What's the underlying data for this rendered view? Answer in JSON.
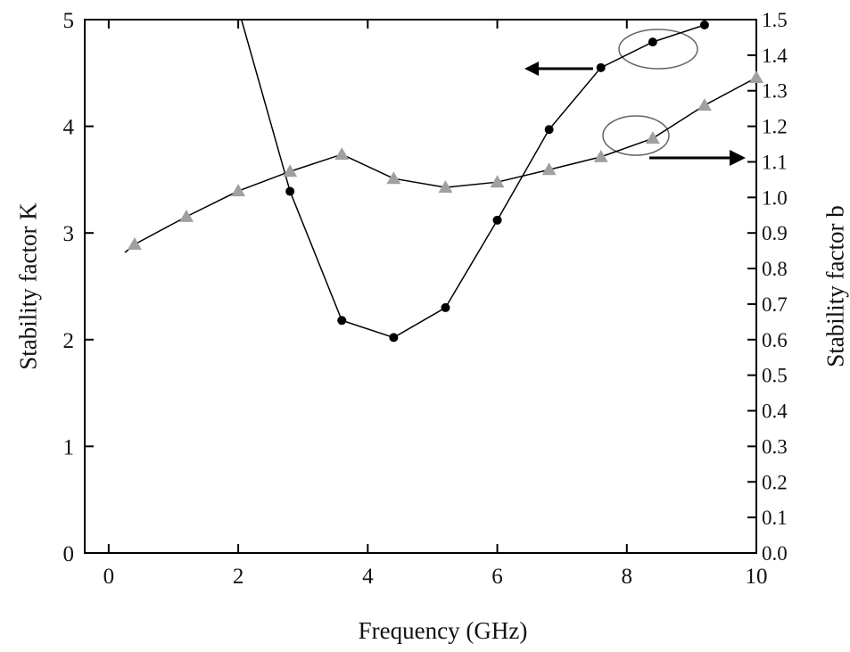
{
  "chart_data": {
    "type": "line",
    "xlabel": "Frequency (GHz)",
    "ylabel_left": "Stability factor K",
    "ylabel_right": "Stability factor b",
    "xlim": [
      -0.37,
      10
    ],
    "ylim_left": [
      0,
      5
    ],
    "ylim_right": [
      0,
      1.5
    ],
    "x_ticks": [
      "0",
      "2",
      "4",
      "6",
      "8",
      "10"
    ],
    "y_ticks_left": [
      "0",
      "1",
      "2",
      "3",
      "4",
      "5"
    ],
    "y_ticks_right": [
      "0.0",
      "0.1",
      "0.2",
      "0.3",
      "0.4",
      "0.5",
      "0.6",
      "0.7",
      "0.8",
      "0.9",
      "1.0",
      "1.1",
      "1.2",
      "1.3",
      "1.4",
      "1.5"
    ],
    "grid": false,
    "series": [
      {
        "axis": "left",
        "marker": "circle",
        "color": "#000000",
        "line_start": [
          2.05,
          5.0
        ],
        "x": [
          2.8,
          3.6,
          4.4,
          5.2,
          6.0,
          6.8,
          7.6,
          8.4,
          9.2
        ],
        "values": [
          3.39,
          2.18,
          2.02,
          2.3,
          3.12,
          3.97,
          4.55,
          4.79,
          4.95
        ]
      },
      {
        "axis": "right",
        "marker": "triangle",
        "color": "#a0a0a0",
        "line_start": [
          0.25,
          0.845
        ],
        "x": [
          0.4,
          1.2,
          2.0,
          2.8,
          3.6,
          4.4,
          5.2,
          6.0,
          6.8,
          7.6,
          8.4,
          9.2,
          10.0
        ],
        "values": [
          0.868,
          0.946,
          1.018,
          1.073,
          1.121,
          1.053,
          1.028,
          1.043,
          1.078,
          1.114,
          1.166,
          1.259,
          1.337
        ]
      }
    ]
  }
}
